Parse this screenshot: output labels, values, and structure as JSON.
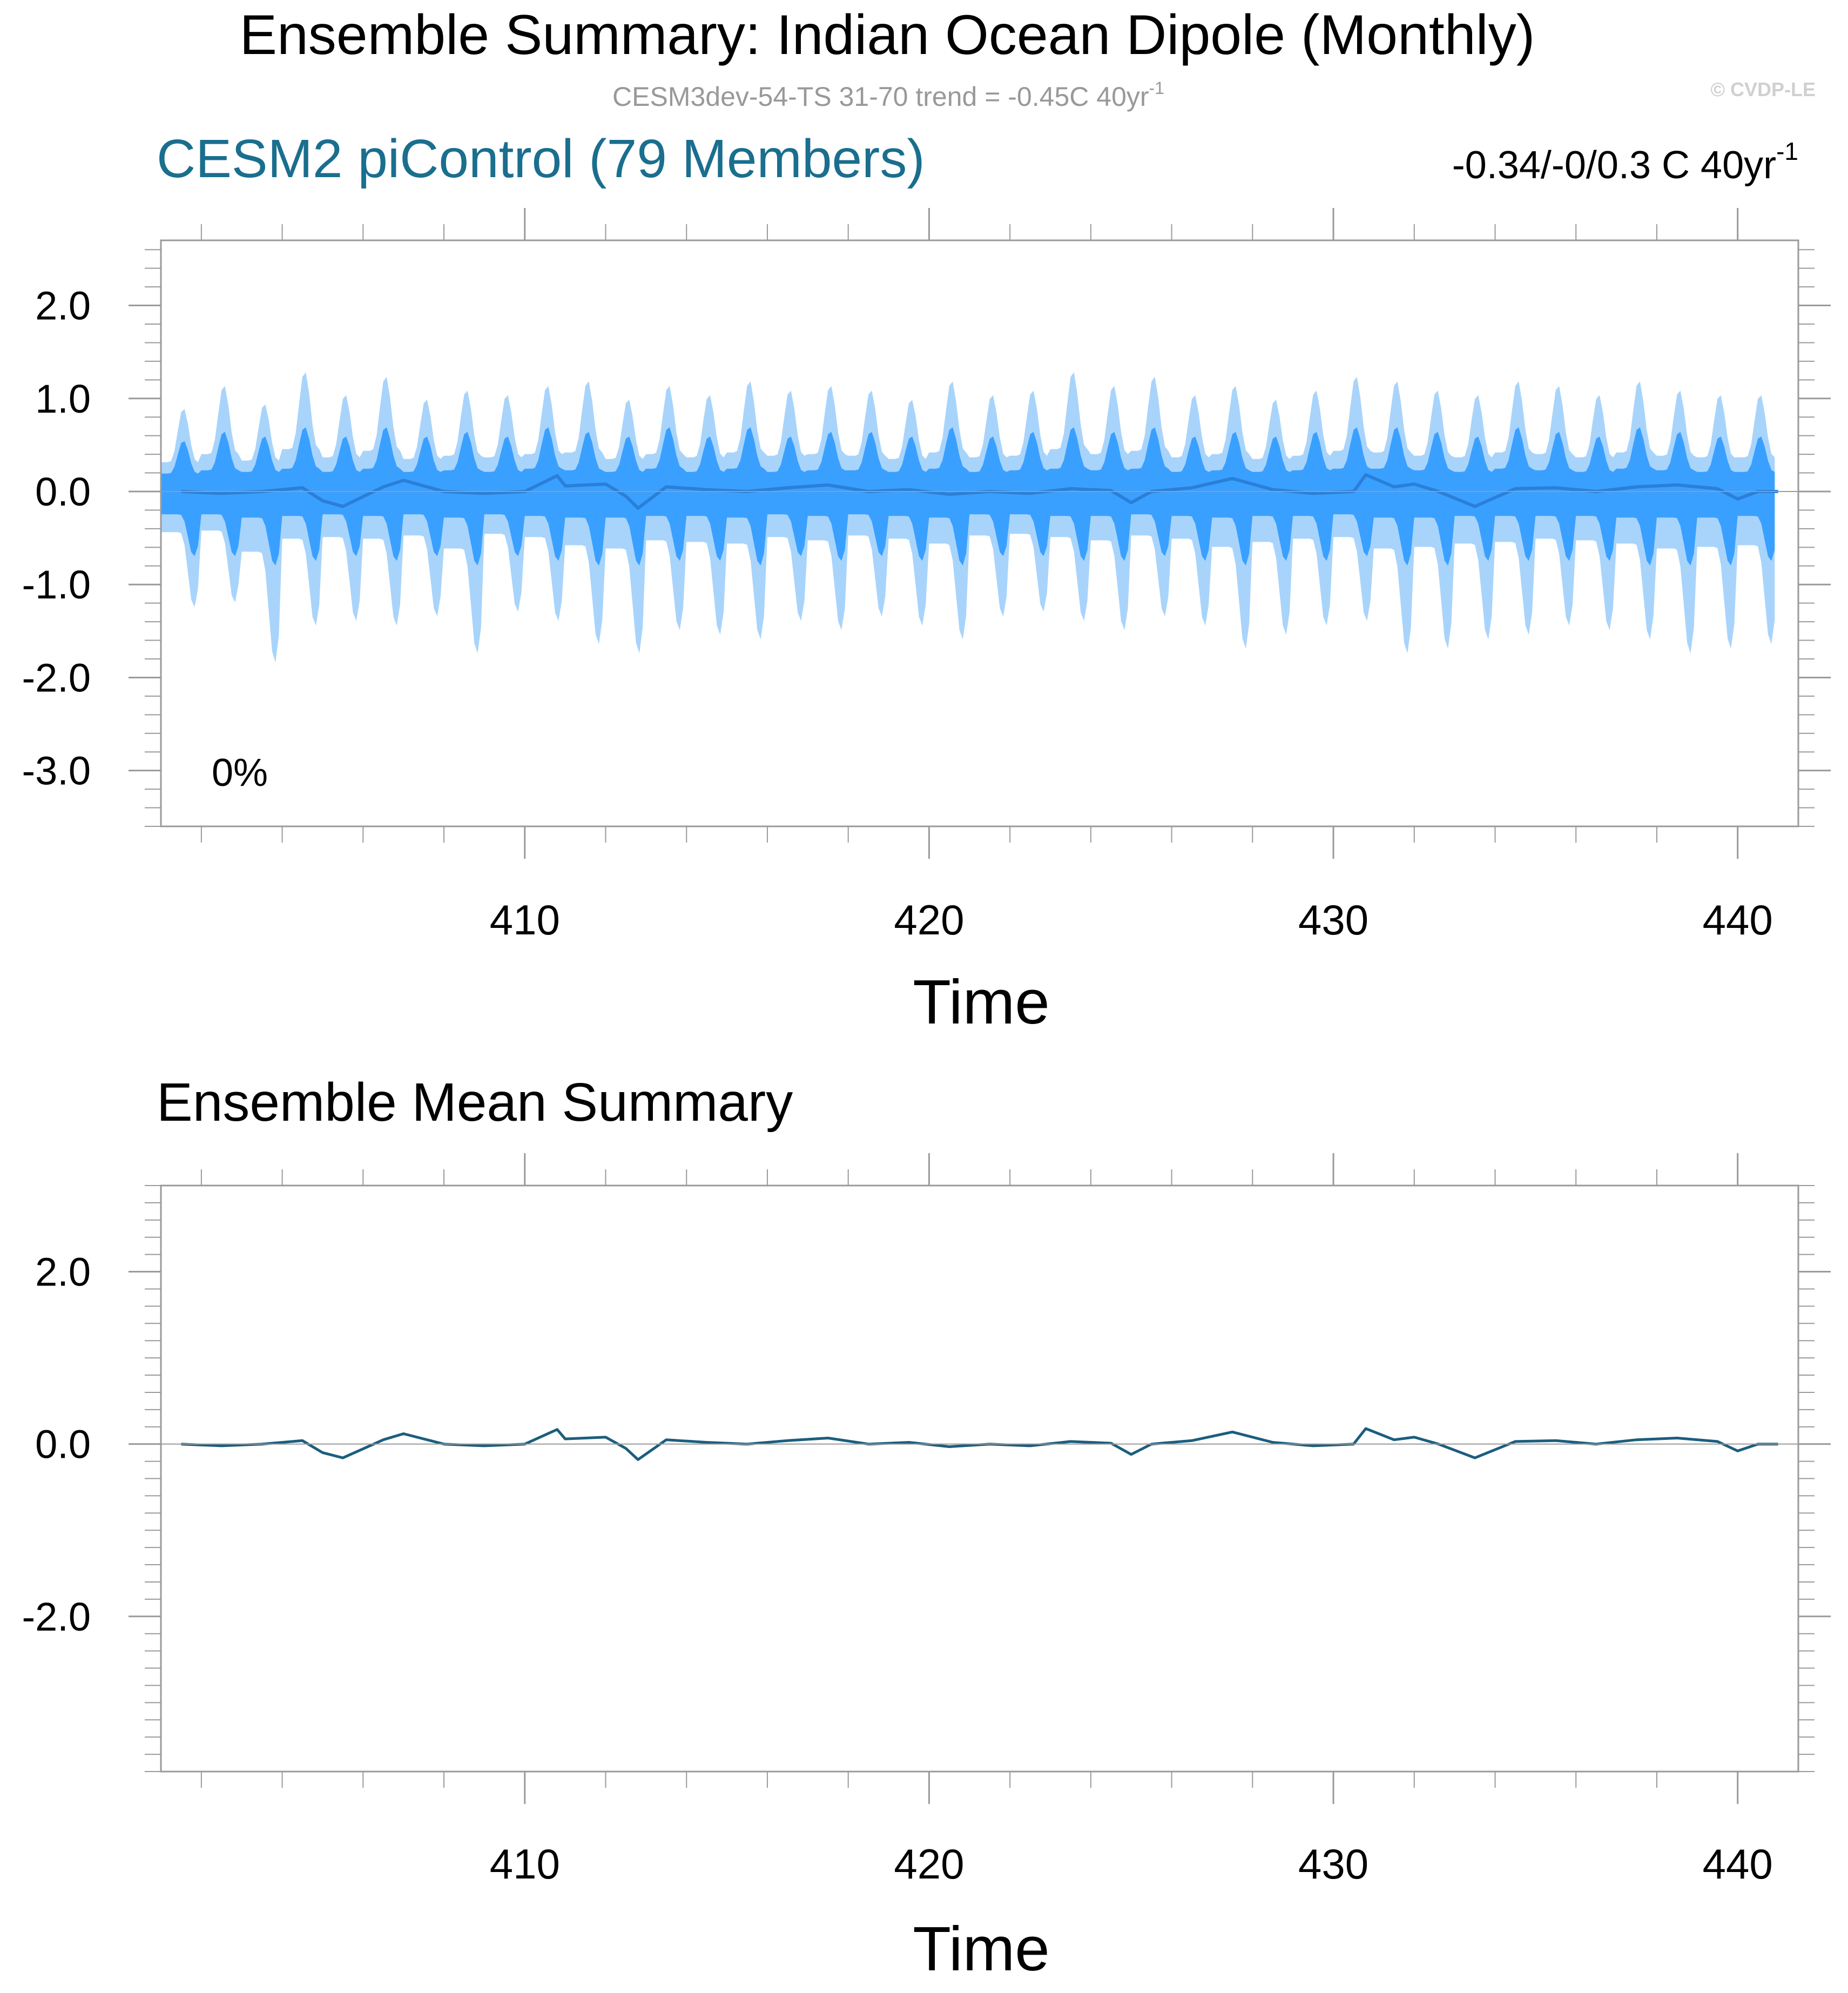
{
  "figure": {
    "title": "Ensemble Summary: Indian Ocean Dipole (Monthly)",
    "subtitle": "CESM3dev-54-TS 31-70 trend = -0.45C 40yr",
    "subtitle_superscript": "-1",
    "watermark": "© CVDP-LE",
    "colors": {
      "title_teal": "#1a6e8e",
      "band_light": "#a8d4fb",
      "band_dark": "#3aa0ff",
      "mean_line_top": "#2a7fd8",
      "mean_line_bottom": "#1b5e7e",
      "subtitle_gray": "#999999"
    }
  },
  "chart_data": [
    {
      "type": "area",
      "panel_title": "CESM2 piControl (79 Members)",
      "trend_label": "-0.34/-0/0.3 C 40yr",
      "trend_superscript": "-1",
      "corner_label": "0%",
      "xlabel": "Time",
      "ylabel": "",
      "xlim": [
        401.0,
        441.5
      ],
      "ylim": [
        -3.6,
        2.7
      ],
      "xticks": [
        410,
        420,
        430,
        440
      ],
      "yticks": [
        2.0,
        1.0,
        0.0,
        -1.0,
        -2.0,
        -3.0
      ],
      "ytick_labels": [
        "2.0",
        "1.0",
        "0.0",
        "-1.0",
        "-2.0",
        "-3.0"
      ],
      "grid": false,
      "series": [
        {
          "kind": "band",
          "x_start": 401.5,
          "x_step": 1.0,
          "upper": [
            0.9,
            1.15,
            0.95,
            1.3,
            1.05,
            1.25,
            1.0,
            1.1,
            1.05,
            1.15,
            1.2,
            1.0,
            1.15,
            1.05,
            1.2,
            1.1,
            1.15,
            1.1,
            1.0,
            1.2,
            1.05,
            1.1,
            1.3,
            1.15,
            1.25,
            1.05,
            1.15,
            1.0,
            1.1,
            1.25,
            1.2,
            1.1,
            1.05,
            1.2,
            1.15,
            1.05,
            1.2,
            1.1,
            1.05,
            1.05
          ],
          "lower": [
            -1.25,
            -1.2,
            -1.85,
            -1.45,
            -1.4,
            -1.45,
            -1.35,
            -1.75,
            -1.3,
            -1.4,
            -1.65,
            -1.75,
            -1.5,
            -1.55,
            -1.6,
            -1.4,
            -1.5,
            -1.35,
            -1.45,
            -1.6,
            -1.35,
            -1.3,
            -1.4,
            -1.5,
            -1.35,
            -1.45,
            -1.7,
            -1.55,
            -1.45,
            -1.4,
            -1.75,
            -1.7,
            -1.6,
            -1.55,
            -1.45,
            -1.5,
            -1.6,
            -1.75,
            -1.7,
            -1.65
          ]
        },
        {
          "kind": "band",
          "x_start": 401.5,
          "x_step": 1.0,
          "upper": [
            0.55,
            0.65,
            0.6,
            0.7,
            0.6,
            0.7,
            0.6,
            0.65,
            0.6,
            0.7,
            0.65,
            0.6,
            0.7,
            0.6,
            0.7,
            0.6,
            0.65,
            0.65,
            0.6,
            0.7,
            0.6,
            0.65,
            0.7,
            0.65,
            0.7,
            0.6,
            0.65,
            0.6,
            0.65,
            0.7,
            0.7,
            0.65,
            0.6,
            0.7,
            0.65,
            0.6,
            0.7,
            0.65,
            0.6,
            0.6
          ],
          "lower": [
            -0.7,
            -0.7,
            -0.8,
            -0.75,
            -0.7,
            -0.75,
            -0.7,
            -0.8,
            -0.7,
            -0.75,
            -0.8,
            -0.8,
            -0.75,
            -0.75,
            -0.8,
            -0.7,
            -0.75,
            -0.7,
            -0.75,
            -0.8,
            -0.7,
            -0.7,
            -0.75,
            -0.75,
            -0.7,
            -0.75,
            -0.8,
            -0.75,
            -0.75,
            -0.7,
            -0.8,
            -0.8,
            -0.75,
            -0.75,
            -0.75,
            -0.75,
            -0.8,
            -0.8,
            -0.8,
            -0.75
          ]
        },
        {
          "kind": "line",
          "x": [
            401.5,
            402.5,
            403.5,
            404.5,
            405.0,
            405.5,
            406.5,
            407.0,
            408.0,
            409.0,
            410.0,
            410.8,
            411.0,
            412.0,
            412.5,
            412.8,
            413.5,
            414.5,
            415.5,
            416.5,
            417.5,
            418.5,
            419.5,
            420.5,
            421.5,
            422.5,
            423.5,
            424.5,
            425.0,
            425.5,
            426.5,
            427.5,
            428.5,
            429.5,
            430.5,
            430.8,
            431.5,
            432.0,
            432.6,
            433.5,
            434.5,
            435.5,
            436.5,
            437.5,
            438.5,
            439.5,
            440.0,
            440.5,
            441.0
          ],
          "y": [
            0.0,
            -0.02,
            0.0,
            0.04,
            -0.1,
            -0.16,
            0.05,
            0.12,
            0.0,
            -0.02,
            0.0,
            0.17,
            0.06,
            0.08,
            -0.05,
            -0.18,
            0.05,
            0.02,
            0.0,
            0.04,
            0.07,
            0.0,
            0.02,
            -0.03,
            0.0,
            -0.02,
            0.03,
            0.01,
            -0.12,
            0.0,
            0.04,
            0.14,
            0.02,
            -0.02,
            0.0,
            0.18,
            0.05,
            0.08,
            0.0,
            -0.16,
            0.03,
            0.04,
            0.0,
            0.05,
            0.07,
            0.03,
            -0.08,
            0.0,
            0.0
          ]
        }
      ]
    },
    {
      "type": "line",
      "panel_title": "Ensemble Mean Summary",
      "xlabel": "Time",
      "ylabel": "",
      "xlim": [
        401.0,
        441.5
      ],
      "ylim": [
        -3.8,
        3.0
      ],
      "xticks": [
        410,
        420,
        430,
        440
      ],
      "yticks": [
        2.0,
        0.0,
        -2.0
      ],
      "ytick_labels": [
        "2.0",
        "0.0",
        "-2.0"
      ],
      "grid": false,
      "series": [
        {
          "kind": "line",
          "x": [
            401.5,
            402.5,
            403.5,
            404.5,
            405.0,
            405.5,
            406.5,
            407.0,
            408.0,
            409.0,
            410.0,
            410.8,
            411.0,
            412.0,
            412.5,
            412.8,
            413.5,
            414.5,
            415.5,
            416.5,
            417.5,
            418.5,
            419.5,
            420.5,
            421.5,
            422.5,
            423.5,
            424.5,
            425.0,
            425.5,
            426.5,
            427.5,
            428.5,
            429.5,
            430.5,
            430.8,
            431.5,
            432.0,
            432.6,
            433.5,
            434.5,
            435.5,
            436.5,
            437.5,
            438.5,
            439.5,
            440.0,
            440.5,
            441.0
          ],
          "y": [
            0.0,
            -0.02,
            0.0,
            0.04,
            -0.1,
            -0.16,
            0.05,
            0.12,
            0.0,
            -0.02,
            0.0,
            0.17,
            0.06,
            0.08,
            -0.05,
            -0.18,
            0.05,
            0.02,
            0.0,
            0.04,
            0.07,
            0.0,
            0.02,
            -0.03,
            0.0,
            -0.02,
            0.03,
            0.01,
            -0.12,
            0.0,
            0.04,
            0.14,
            0.02,
            -0.02,
            0.0,
            0.18,
            0.05,
            0.08,
            0.0,
            -0.16,
            0.03,
            0.04,
            0.0,
            0.05,
            0.07,
            0.03,
            -0.08,
            0.0,
            0.0
          ]
        }
      ]
    }
  ]
}
